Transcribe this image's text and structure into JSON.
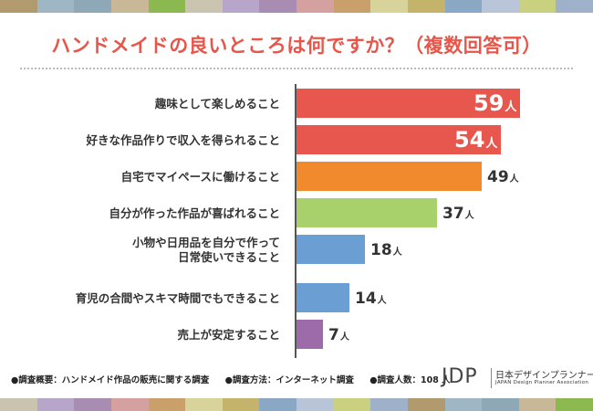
{
  "colors": {
    "title": "#e8554a",
    "strip": [
      "#b09a6e",
      "#9fb7c4",
      "#8fa8b8",
      "#c8b898",
      "#8bb84f",
      "#c9c3b0",
      "#b7a6c9",
      "#a88cb2",
      "#d4a0a0",
      "#c9a06a",
      "#d8d39a",
      "#c4b36a",
      "#8aa8c4",
      "#b8c4d8",
      "#c9d080",
      "#9fb1c8"
    ]
  },
  "title": "ハンドメイドの良いところは何ですか？（複数回答可）",
  "chart_data": {
    "type": "bar",
    "orientation": "horizontal",
    "title": "ハンドメイドの良いところは何ですか？（複数回答可）",
    "unit": "人",
    "categories": [
      [
        "趣味として楽しめること"
      ],
      [
        "好きな作品作りで収入を得られること"
      ],
      [
        "自宅でマイペースに働けること"
      ],
      [
        "自分が作った作品が喜ばれること"
      ],
      [
        "小物や日用品を自分で作って",
        "日常使いできること"
      ],
      [
        "育児の合間やスキマ時間でもできること"
      ],
      [
        "売上が安定すること"
      ]
    ],
    "values": [
      59,
      54,
      49,
      37,
      18,
      14,
      7
    ],
    "value_labels": [
      "59",
      "54",
      "49",
      "37",
      "18",
      "14",
      "7"
    ],
    "bar_colors": [
      "#e8574e",
      "#e8574e",
      "#f08a2c",
      "#a9d16b",
      "#6b9fd4",
      "#6b9fd4",
      "#9d6aaa"
    ],
    "xlim": [
      0,
      59
    ],
    "grid": false,
    "legend": "none"
  },
  "footer": {
    "items": [
      "●調査概要：ハンドメイド作品の販売に関する調査",
      "●調査方法：インターネット調査",
      "●調査人数：108 人"
    ]
  },
  "logo": {
    "mark": "JDP",
    "jp": "日本デザインプランナー協会",
    "en": "JAPAN Design Planner Association"
  }
}
